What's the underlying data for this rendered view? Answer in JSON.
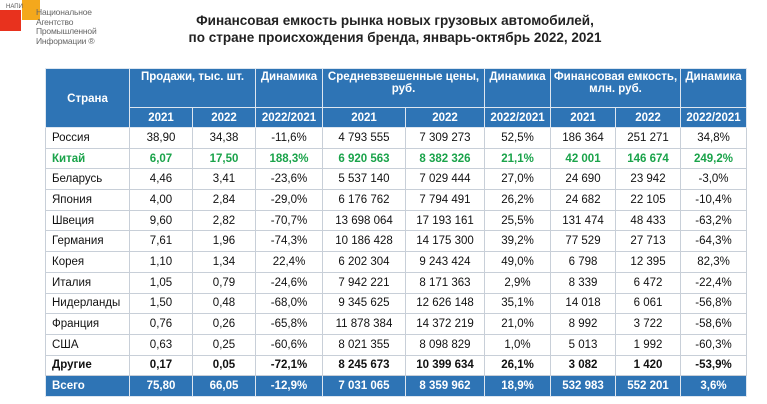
{
  "logo": {
    "abbr": "НАПИ",
    "lines": [
      "Национальное",
      "Агентство",
      "Промышленной",
      "Информации ®"
    ]
  },
  "title": {
    "line1": "Финансовая емкость  рынка новых грузовых автомобилей,",
    "line2": "по стране происхождения бренда, январь-октябрь 2022, 2021"
  },
  "headers": {
    "country": "Страна",
    "sales": "Продажи, тыс. шт.",
    "dyn": "Динамика",
    "prices": "Средневзвешенные цены, руб.",
    "capacity": "Финансовая емкость, млн. руб.",
    "y2021": "2021",
    "y2022": "2022",
    "ratio": "2022/2021"
  },
  "rows": [
    {
      "style": "",
      "cells": [
        "Россия",
        "38,90",
        "34,38",
        "-11,6%",
        "4 793 555",
        "7 309 273",
        "52,5%",
        "186 364",
        "251 271",
        "34,8%"
      ]
    },
    {
      "style": "green",
      "cells": [
        "Китай",
        "6,07",
        "17,50",
        "188,3%",
        "6 920 563",
        "8 382 326",
        "21,1%",
        "42 001",
        "146 674",
        "249,2%"
      ]
    },
    {
      "style": "",
      "cells": [
        "Беларусь",
        "4,46",
        "3,41",
        "-23,6%",
        "5 537 140",
        "7 029 444",
        "27,0%",
        "24 690",
        "23 942",
        "-3,0%"
      ]
    },
    {
      "style": "",
      "cells": [
        "Япония",
        "4,00",
        "2,84",
        "-29,0%",
        "6 176 762",
        "7 794 491",
        "26,2%",
        "24 682",
        "22 105",
        "-10,4%"
      ]
    },
    {
      "style": "",
      "cells": [
        "Швеция",
        "9,60",
        "2,82",
        "-70,7%",
        "13 698 064",
        "17 193 161",
        "25,5%",
        "131 474",
        "48 433",
        "-63,2%"
      ]
    },
    {
      "style": "",
      "cells": [
        "Германия",
        "7,61",
        "1,96",
        "-74,3%",
        "10 186 428",
        "14 175 300",
        "39,2%",
        "77 529",
        "27 713",
        "-64,3%"
      ]
    },
    {
      "style": "",
      "cells": [
        "Корея",
        "1,10",
        "1,34",
        "22,4%",
        "6 202 304",
        "9 243 424",
        "49,0%",
        "6 798",
        "12 395",
        "82,3%"
      ]
    },
    {
      "style": "",
      "cells": [
        "Италия",
        "1,05",
        "0,79",
        "-24,6%",
        "7 942 221",
        "8 171 363",
        "2,9%",
        "8 339",
        "6 472",
        "-22,4%"
      ]
    },
    {
      "style": "",
      "cells": [
        "Нидерланды",
        "1,50",
        "0,48",
        "-68,0%",
        "9 345 625",
        "12 626 148",
        "35,1%",
        "14 018",
        "6 061",
        "-56,8%"
      ]
    },
    {
      "style": "",
      "cells": [
        "Франция",
        "0,76",
        "0,26",
        "-65,8%",
        "11 878 384",
        "14 372 219",
        "21,0%",
        "8 992",
        "3 722",
        "-58,6%"
      ]
    },
    {
      "style": "",
      "cells": [
        "США",
        "0,63",
        "0,25",
        "-60,6%",
        "8 021 355",
        "8 098 829",
        "1,0%",
        "5 013",
        "1 992",
        "-60,3%"
      ]
    },
    {
      "style": "bold",
      "cells": [
        "Другие",
        "0,17",
        "0,05",
        "-72,1%",
        "8 245 673",
        "10 399 634",
        "26,1%",
        "3 082",
        "1 420",
        "-53,9%"
      ]
    },
    {
      "style": "total",
      "cells": [
        "Всего",
        "75,80",
        "66,05",
        "-12,9%",
        "7 031 065",
        "8 359 962",
        "18,9%",
        "532 983",
        "552 201",
        "3,6%"
      ]
    }
  ]
}
